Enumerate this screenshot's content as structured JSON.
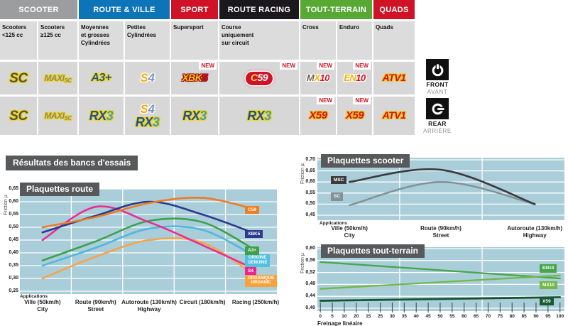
{
  "section_title": "Résultats des bancs d'essais",
  "table": {
    "col_edges": [
      0,
      54,
      111,
      176,
      241,
      309,
      423,
      475,
      526,
      586
    ],
    "categories": [
      {
        "label": "SCOOTER",
        "color": "#9b9d9e",
        "col_start": 0,
        "col_span": 2
      },
      {
        "label": "ROUTE & VILLE",
        "color": "#0e74b8",
        "col_start": 2,
        "col_span": 2
      },
      {
        "label": "SPORT",
        "color": "#d01226",
        "col_start": 4,
        "col_span": 1
      },
      {
        "label": "ROUTE RACING",
        "color": "#1b181d",
        "col_start": 5,
        "col_span": 1
      },
      {
        "label": "TOUT-TERRAIN",
        "color": "#57a934",
        "col_start": 6,
        "col_span": 2
      },
      {
        "label": "QUADS",
        "color": "#d01226",
        "col_start": 8,
        "col_span": 1
      }
    ],
    "subheaders": [
      "Scooters\n<125 cc",
      "Scooters\n≥125 cc",
      "Moyennes\net grosses\nCylindrées",
      "Petites\nCylindrées",
      "Supersport",
      "Course\nuniquement\nsur circuit",
      "Cross",
      "Enduro",
      "Quads"
    ],
    "new_label": "NEW",
    "rows": [
      {
        "side": "front",
        "cells": [
          [
            "SC"
          ],
          [
            "MAXISC"
          ],
          [
            "A3PLUS"
          ],
          [
            "S4"
          ],
          [
            "XBK5"
          ],
          [
            "C59"
          ],
          [
            "MX10"
          ],
          [
            "EN10"
          ],
          [
            "ATV1"
          ]
        ],
        "new_flags": [
          4,
          5,
          6,
          7
        ]
      },
      {
        "side": "rear",
        "cells": [
          [
            "SC"
          ],
          [
            "MAXISC"
          ],
          [
            "RX3"
          ],
          [
            "S4",
            "RX3"
          ],
          [
            "RX3"
          ],
          [
            "RX3"
          ],
          [
            "X59"
          ],
          [
            "X59"
          ],
          [
            "ATV1"
          ]
        ],
        "new_flags": [
          6,
          7
        ]
      }
    ]
  },
  "badges": {
    "SC": {
      "glow": "#f3d60a",
      "parts": [
        {
          "t": "SC",
          "c": "#4f5052",
          "s": 19
        }
      ]
    },
    "MAXISC": {
      "glow": "#f3d60a",
      "parts": [
        {
          "t": "MAXI",
          "c": "#85878a",
          "s": 12
        },
        {
          "t": "SC",
          "c": "#85878a",
          "s": 8,
          "dy": 2
        }
      ]
    },
    "A3PLUS": {
      "glow": "#f3d60a",
      "parts": [
        {
          "t": "A3+",
          "c": "#2257a5",
          "s": 16
        }
      ]
    },
    "S4": {
      "glow": "#ffffff",
      "parts": [
        {
          "t": "S",
          "c": "#f7a600",
          "s": 17
        },
        {
          "t": "4",
          "c": "#7c95c4",
          "s": 17
        }
      ]
    },
    "XBK5": {
      "glow": "#9b1115",
      "parts": [
        {
          "t": "XBK",
          "c": "#f3c211",
          "s": 14
        },
        {
          "t": "5",
          "c": "#d01225",
          "s": 14
        }
      ]
    },
    "C59": {
      "pill": true,
      "bg": "#cf1225",
      "glow": "#ffffff",
      "parts": [
        {
          "t": "C",
          "c": "#f5d44d",
          "s": 14
        },
        {
          "t": "59",
          "c": "#ffffff",
          "s": 14
        }
      ]
    },
    "MX10": {
      "glow": "#ffffff",
      "parts": [
        {
          "t": "M",
          "c": "#6f6351",
          "s": 13
        },
        {
          "t": "X",
          "c": "#f0b400",
          "s": 13
        },
        {
          "t": "10",
          "c": "#d01225",
          "s": 13
        }
      ]
    },
    "EN10": {
      "glow": "#ffffff",
      "parts": [
        {
          "t": "EN",
          "c": "#f0b400",
          "s": 13
        },
        {
          "t": "10",
          "c": "#d01225",
          "s": 13
        }
      ]
    },
    "ATV1": {
      "glow": "#f3c211",
      "parts": [
        {
          "t": "ATV1",
          "c": "#d01225",
          "s": 14
        }
      ]
    },
    "RX3": {
      "glow": "#f3d60a",
      "parts": [
        {
          "t": "RX",
          "c": "#1d4fa1",
          "s": 18
        },
        {
          "t": "3",
          "c": "#3c9bd5",
          "s": 18
        }
      ]
    },
    "X59": {
      "glow": "#f3c211",
      "parts": [
        {
          "t": "X59",
          "c": "#d01225",
          "s": 15
        }
      ]
    }
  },
  "side_labels": {
    "front": {
      "en": "FRONT",
      "fr": "AVANT"
    },
    "rear": {
      "en": "REAR",
      "fr": "ARRIÈRE"
    }
  },
  "chart_data": [
    {
      "id": "route",
      "type": "line",
      "title": "Plaquettes route",
      "ylabel": "Friction µ",
      "ylim": [
        0.25,
        0.65
      ],
      "background": "#a9cdd9",
      "grid": "white",
      "yticks": [
        "0,65",
        "0,60",
        "0,55",
        "0,50",
        "0,45",
        "0,40",
        "0,35",
        "0,30",
        "0,25"
      ],
      "ytick_values": [
        0.65,
        0.6,
        0.55,
        0.5,
        0.45,
        0.4,
        0.35,
        0.3,
        0.25
      ],
      "x_axis_caption": "Applications",
      "categories": [
        "Ville/City (50km/h)",
        "Route/Street (90km/h)",
        "Autoroute/Highway (130km/h)",
        "Circuit (180km/h)",
        "Racing (250km/h)"
      ],
      "x_stops": [
        {
          "fr": "Ville",
          "en": "City",
          "speed": "(50km/h)"
        },
        {
          "fr": "Route",
          "en": "Street",
          "speed": "(90km/h)"
        },
        {
          "fr": "Autoroute",
          "en": "Highway",
          "speed": "(130km/h)"
        },
        {
          "fr": "Circuit (180km/h)"
        },
        {
          "fr": "Racing (250km/h)"
        }
      ],
      "series": [
        {
          "name": "ORGANIQUE",
          "label_lines": [
            "ORGANIQUE",
            "ORGANIC"
          ],
          "color": "#f4a54a",
          "label_bg": "#f9a23c",
          "values": [
            0.3,
            0.385,
            0.45,
            0.44,
            0.31
          ],
          "label_value": 0.29
        },
        {
          "name": "ORIGINE",
          "label_lines": [
            "ORIGINE",
            "GENUINE"
          ],
          "color": "#4fb8dc",
          "label_bg": "#52c0e0",
          "values": [
            0.35,
            0.42,
            0.495,
            0.49,
            0.385
          ],
          "label_value": 0.37
        },
        {
          "name": "A3+",
          "label_lines": [
            "A3+"
          ],
          "color": "#3da24c",
          "label_bg": "#3fa047",
          "values": [
            0.37,
            0.445,
            0.525,
            0.52,
            0.41
          ],
          "label_value": 0.405
        },
        {
          "name": "S4",
          "label_lines": [
            "S4"
          ],
          "color": "#eb2d90",
          "label_bg": "#ec268f",
          "values": [
            0.45,
            0.58,
            0.52,
            0.43,
            0.335
          ],
          "label_value": 0.325
        },
        {
          "name": "XBK5",
          "label_lines": [
            "XBK5"
          ],
          "color": "#2b3a92",
          "label_bg": "#2b3990",
          "values": [
            0.48,
            0.545,
            0.6,
            0.55,
            0.475
          ],
          "label_value": 0.47
        },
        {
          "name": "C59",
          "label_lines": [
            "C59"
          ],
          "color": "#ee7b24",
          "label_bg": "#ef7d21",
          "values": [
            0.5,
            0.54,
            0.595,
            0.615,
            0.57
          ],
          "label_value": 0.565
        }
      ]
    },
    {
      "id": "scooter",
      "type": "line",
      "title": "Plaquettes scooter",
      "ylabel": "Friction µ",
      "ylim": [
        0.45,
        0.7
      ],
      "background": "#a9cdd9",
      "grid": "white",
      "yticks": [
        "0,70",
        "0,65",
        "0,60",
        "0,55",
        "0,50",
        "0,45"
      ],
      "ytick_values": [
        0.7,
        0.65,
        0.6,
        0.55,
        0.5,
        0.45
      ],
      "x_axis_caption": "Applications",
      "categories": [
        "Ville/City (50km/h)",
        "Route/Street (90km/h)",
        "Autoroute/Highway (130km/h)"
      ],
      "x_stops": [
        {
          "fr": "Ville",
          "en": "City",
          "speed": "(50km/h)"
        },
        {
          "fr": "Route",
          "en": "Street",
          "speed": "(90km/h)"
        },
        {
          "fr": "Autoroute",
          "en": "Highway",
          "speed": "(130km/h)"
        }
      ],
      "label_side": "start",
      "series": [
        {
          "name": "SC",
          "label_lines": [
            "SC"
          ],
          "color": "#829296",
          "label_bg": "#829296",
          "values": [
            0.495,
            0.6,
            0.5
          ],
          "label_value": 0.53
        },
        {
          "name": "MSC",
          "label_lines": [
            "MSC"
          ],
          "color": "#3c3c3e",
          "label_bg": "#3c3c3e",
          "values": [
            0.6,
            0.655,
            0.5
          ],
          "label_value": 0.605,
          "stroke_width": 2.7
        }
      ]
    },
    {
      "id": "tt",
      "type": "line",
      "title": "Plaquettes tout-terrain",
      "ylabel": "Friction µ",
      "ylim": [
        0.4,
        0.6
      ],
      "background": "#a9cdd9",
      "grid": "white",
      "yticks": [
        "0,60",
        "0,56",
        "0,52",
        "0,48",
        "0,44",
        "0,40"
      ],
      "ytick_values": [
        0.6,
        0.56,
        0.52,
        0.48,
        0.44,
        0.4
      ],
      "xlabel": "Freinage linéaire",
      "xticks": [
        "0",
        "5",
        "10",
        "20",
        "15",
        "25",
        "30",
        "35",
        "40",
        "45",
        "50",
        "55",
        "60",
        "65",
        "70",
        "75",
        "80",
        "85",
        "90",
        "95",
        "100"
      ],
      "label_side": "end",
      "series": [
        {
          "name": "EN10",
          "label_lines": [
            "EN10"
          ],
          "color": "#48a649",
          "label_bg": "#48a649",
          "x": [
            0,
            100
          ],
          "values": [
            0.555,
            0.5
          ],
          "label_value": 0.53
        },
        {
          "name": "MX10",
          "label_lines": [
            "MX10"
          ],
          "color": "#72b944",
          "label_bg": "#72b944",
          "x": [
            0,
            100
          ],
          "values": [
            0.465,
            0.51
          ],
          "label_value": 0.475
        },
        {
          "name": "X59",
          "label_lines": [
            "X59"
          ],
          "color": "#14532d",
          "label_bg": "#155a33",
          "x": [
            0,
            100
          ],
          "values": [
            0.425,
            0.437
          ],
          "label_value": 0.42,
          "stroke_width": 2.7
        }
      ]
    }
  ]
}
